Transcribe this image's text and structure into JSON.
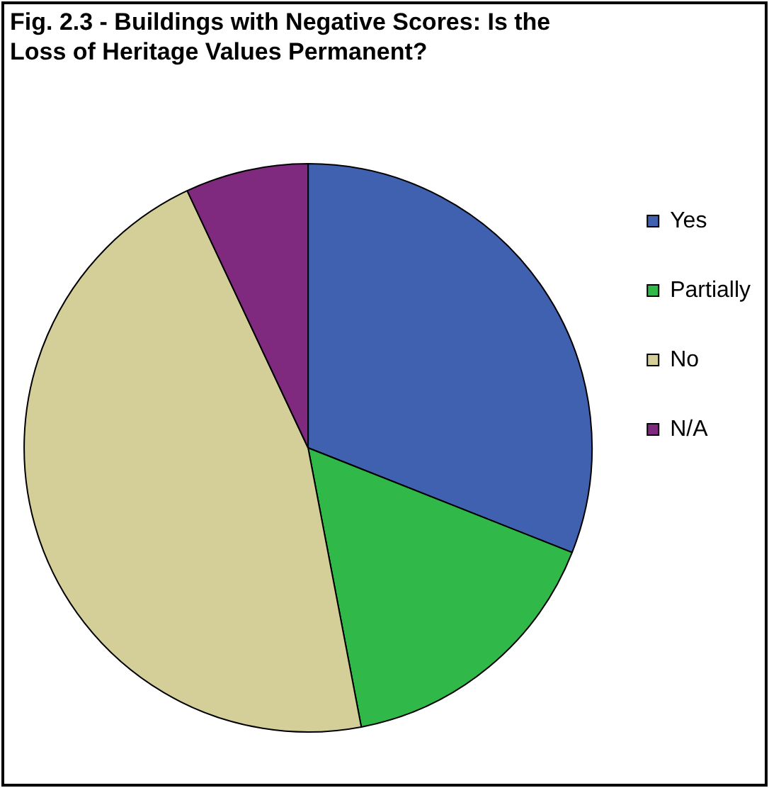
{
  "chart_data": {
    "type": "pie",
    "title": "Fig. 2.3 - Buildings with Negative Scores: Is the Loss of Heritage Values Permanent?",
    "categories": [
      "Yes",
      "Partially",
      "No",
      "N/A"
    ],
    "values": [
      31,
      16,
      46,
      7
    ],
    "colors": [
      "#4060b0",
      "#30b848",
      "#d4cf98",
      "#7f2a7f"
    ],
    "legend": "right"
  }
}
